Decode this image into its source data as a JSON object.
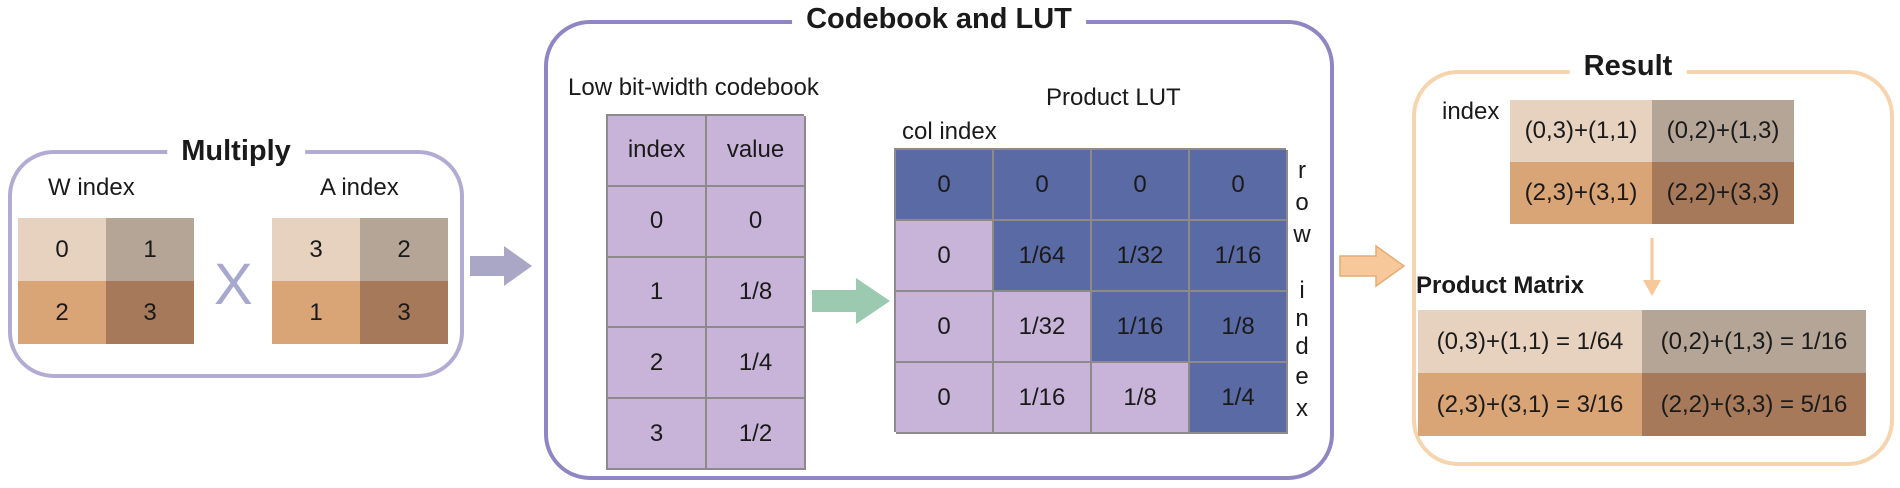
{
  "colors": {
    "multiply_border": "#b3abd3",
    "codebook_border": "#8f86c3",
    "result_border": "#f6d5ae",
    "light_cell": "#e7d2bf",
    "gray_cell": "#b4a597",
    "tan_cell": "#d9a576",
    "brown_cell": "#a6795a",
    "lavender_cell": "#c8b4d9",
    "blue_cell": "#5a6aa4",
    "arrow_lavender": "#a9a7c5",
    "arrow_green": "#9ccab0",
    "arrow_orange": "#f6c89a"
  },
  "multiply": {
    "title": "Multiply",
    "w_label": "W index",
    "a_label": "A index",
    "times_symbol": "X",
    "w_cells": [
      "0",
      "1",
      "2",
      "3"
    ],
    "a_cells": [
      "3",
      "2",
      "1",
      "3"
    ]
  },
  "codebook": {
    "title": "Codebook and LUT",
    "codebook_label": "Low bit-width codebook",
    "header": [
      "index",
      "value"
    ],
    "rows": [
      [
        "0",
        "0"
      ],
      [
        "1",
        "1/8"
      ],
      [
        "2",
        "1/4"
      ],
      [
        "3",
        "1/2"
      ]
    ],
    "lut_label": "Product LUT",
    "col_index_label": "col index",
    "row_index_letters": [
      "r",
      "o",
      "w",
      "i",
      "n",
      "d",
      "e",
      "x"
    ],
    "lut": [
      [
        "0",
        "0",
        "0",
        "0"
      ],
      [
        "0",
        "1/64",
        "1/32",
        "1/16"
      ],
      [
        "0",
        "1/32",
        "1/16",
        "1/8"
      ],
      [
        "0",
        "1/16",
        "1/8",
        "1/4"
      ]
    ]
  },
  "result": {
    "title": "Result",
    "index_label": "index",
    "index_cells": [
      "(0,3)+(1,1)",
      "(0,2)+(1,3)",
      "(2,3)+(3,1)",
      "(2,2)+(3,3)"
    ],
    "product_label": "Product Matrix",
    "product_cells": [
      "(0,3)+(1,1) = 1/64",
      "(0,2)+(1,3) = 1/16",
      "(2,3)+(3,1) = 3/16",
      "(2,2)+(3,3) = 5/16"
    ]
  }
}
